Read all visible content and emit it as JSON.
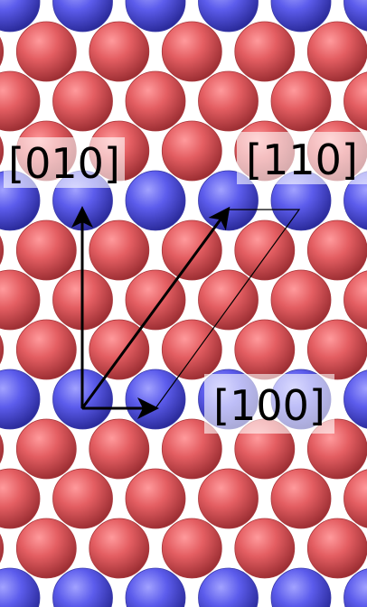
{
  "lattice": {
    "host_color": "#e05a5e",
    "dopant_color": "#5a5ae6"
  },
  "directions": [
    {
      "id": "100",
      "label": "[100]"
    },
    {
      "id": "010",
      "label": "[010]"
    },
    {
      "id": "110",
      "label": "[110]"
    }
  ],
  "unit_cell": {
    "outline": "parallelogram"
  }
}
